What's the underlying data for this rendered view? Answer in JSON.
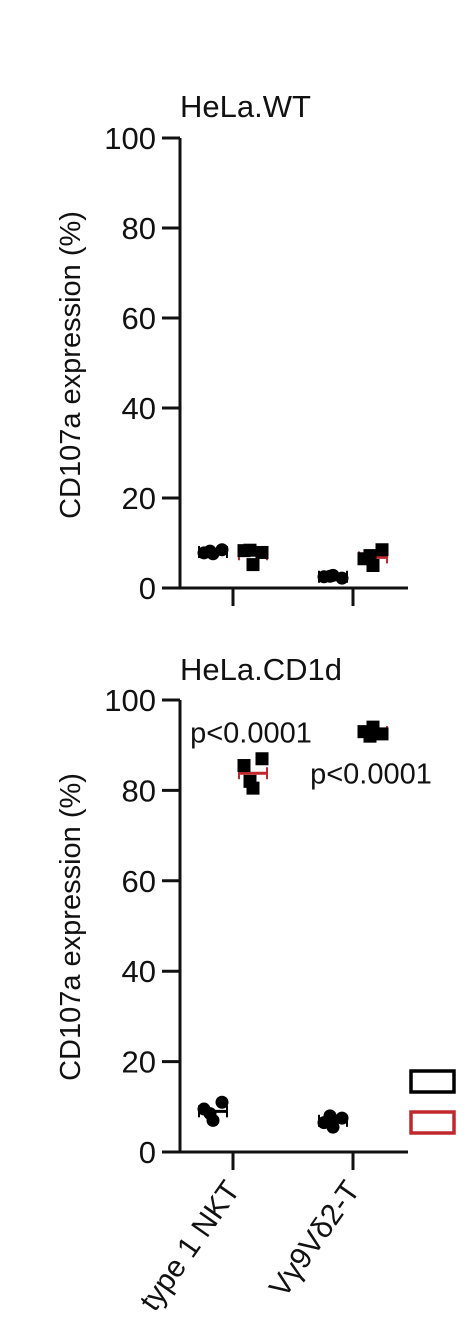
{
  "colors": {
    "condition_black": "#000000",
    "condition_red": "#c0282d",
    "axis": "#111111"
  },
  "chart_data": [
    {
      "type": "scatter",
      "title": "HeLa.WT",
      "xlabel": "",
      "ylabel": "CD107a expression (%)",
      "ylim": [
        0,
        100
      ],
      "yticks": [
        0,
        20,
        40,
        60,
        80,
        100
      ],
      "categories": [
        "type 1 NKT",
        "Vγ9Vδ2-T"
      ],
      "series": [
        {
          "color": "#000000",
          "marker": "circle",
          "values": [
            [
              7.8,
              8.5,
              7.6,
              8.2
            ],
            [
              2.5,
              2.2,
              2.8,
              2.6
            ]
          ],
          "means": [
            8.0,
            2.5
          ]
        },
        {
          "color": "#c0282d",
          "marker": "square",
          "values": [
            [
              8.3,
              7.9,
              5.2,
              8.4
            ],
            [
              6.5,
              8.5,
              5.0,
              7.2
            ]
          ],
          "means": [
            7.5,
            6.8
          ]
        }
      ],
      "annotations": []
    },
    {
      "type": "scatter",
      "title": "HeLa.CD1d",
      "xlabel": "",
      "ylabel": "CD107a expression (%)",
      "ylim": [
        0,
        100
      ],
      "yticks": [
        0,
        20,
        40,
        60,
        80,
        100
      ],
      "categories": [
        "type 1 NKT",
        "Vγ9Vδ2-T"
      ],
      "series": [
        {
          "color": "#000000",
          "marker": "circle",
          "values": [
            [
              9.5,
              11.0,
              7.0,
              8.5
            ],
            [
              6.5,
              7.5,
              5.5,
              8.0
            ]
          ],
          "means": [
            9.0,
            6.9
          ]
        },
        {
          "color": "#c0282d",
          "marker": "square",
          "values": [
            [
              85.5,
              87.0,
              80.5,
              82.0
            ],
            [
              93.0,
              92.5,
              94.0,
              92.0
            ]
          ],
          "means": [
            83.8,
            92.9
          ]
        }
      ],
      "annotations": [
        {
          "text": "p<0.0001",
          "category_index": 0,
          "y": 93
        },
        {
          "text": "p<0.0001",
          "category_index": 1,
          "y": 84
        }
      ]
    }
  ],
  "legend": {
    "placement": "right",
    "entries": [
      {
        "color": "#000000"
      },
      {
        "color": "#c0282d"
      }
    ]
  }
}
